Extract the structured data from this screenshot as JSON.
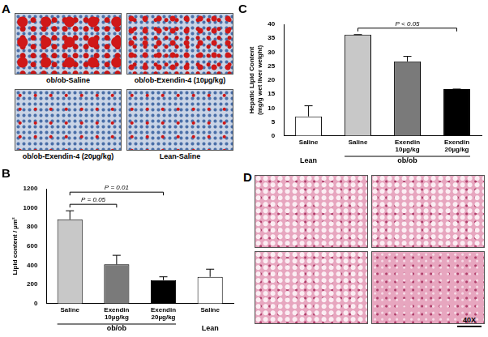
{
  "chart_data": [
    {
      "panel": "B",
      "type": "bar",
      "categories": [
        "Saline",
        "Exendin10µg/kg",
        "Exendin20µg/kg",
        "Saline"
      ],
      "groups": [
        {
          "label": "ob/ob",
          "categories": [
            0,
            1,
            2
          ]
        },
        {
          "label": "Lean",
          "categories": [
            3
          ]
        }
      ],
      "values": [
        880,
        410,
        245,
        280
      ],
      "errors": [
        90,
        95,
        35,
        80
      ],
      "colors": [
        "#c8c8c8",
        "#7a7a7a",
        "#000000",
        "#ffffff"
      ],
      "y_label": "Lipid content / µm²",
      "ylim": [
        0,
        1200
      ],
      "yticks": [
        0,
        200,
        400,
        600,
        800,
        1000,
        1200
      ],
      "grid": false,
      "annotations": [
        {
          "text": "P = 0.05",
          "from": 0,
          "to": 1
        },
        {
          "text": "P = 0.01",
          "from": 0,
          "to": 2
        }
      ]
    },
    {
      "panel": "C",
      "type": "bar",
      "categories": [
        "Saline",
        "Saline",
        "Exendin 10µg/kg",
        "Exendin 20µg/kg"
      ],
      "groups": [
        {
          "label": "Lean",
          "categories": [
            0
          ]
        },
        {
          "label": "ob/ob",
          "categories": [
            1,
            2,
            3
          ]
        }
      ],
      "values": [
        7,
        36.3,
        26.7,
        16.8
      ],
      "errors": [
        3.8,
        0,
        1.8,
        0
      ],
      "colors": [
        "#ffffff",
        "#c8c8c8",
        "#7a7a7a",
        "#000000"
      ],
      "y_label": "Hepatic Lipid Content (mg/g wet liver weight)",
      "ylim": [
        0,
        40
      ],
      "yticks": [
        0,
        5,
        10,
        15,
        20,
        25,
        30,
        35,
        40
      ],
      "grid": false,
      "annotations": [
        {
          "text": "P < 0.05",
          "from": 1,
          "to": 3
        }
      ]
    }
  ],
  "panels": [
    {
      "panel": "A",
      "images": [
        {
          "label": "ob/ob-Saline"
        },
        {
          "label": "ob/ob-Exendin-4 (10µg/kg)"
        },
        {
          "label": "ob/ob-Exendin-4 (20µg/kg)"
        },
        {
          "label": "Lean-Saline"
        }
      ]
    },
    {
      "panel": "D",
      "scale_label": "40X"
    }
  ]
}
